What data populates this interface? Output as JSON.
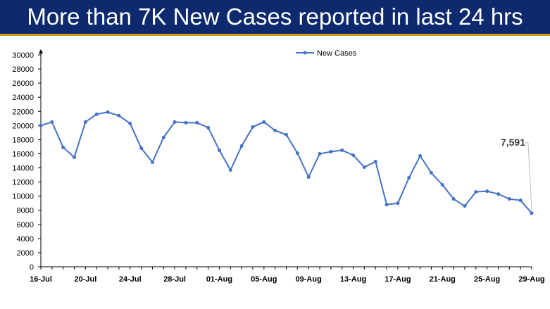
{
  "title": "More than 7K New Cases reported in last 24 hrs",
  "colors": {
    "header_bg": "#0d2a6e",
    "header_accent": "#d4a01a",
    "series": "#4472c4"
  },
  "chart_data": {
    "type": "line",
    "legend_position": "top-center",
    "grid": false,
    "ylim": [
      0,
      30000
    ],
    "yticks": [
      0,
      2000,
      4000,
      6000,
      8000,
      10000,
      12000,
      14000,
      16000,
      18000,
      20000,
      22000,
      24000,
      26000,
      28000,
      30000
    ],
    "x": [
      "16-Jul",
      "17-Jul",
      "18-Jul",
      "19-Jul",
      "20-Jul",
      "21-Jul",
      "22-Jul",
      "23-Jul",
      "24-Jul",
      "25-Jul",
      "26-Jul",
      "27-Jul",
      "28-Jul",
      "29-Jul",
      "30-Jul",
      "31-Jul",
      "01-Aug",
      "02-Aug",
      "03-Aug",
      "04-Aug",
      "05-Aug",
      "06-Aug",
      "07-Aug",
      "08-Aug",
      "09-Aug",
      "10-Aug",
      "11-Aug",
      "12-Aug",
      "13-Aug",
      "14-Aug",
      "15-Aug",
      "16-Aug",
      "17-Aug",
      "18-Aug",
      "19-Aug",
      "20-Aug",
      "21-Aug",
      "22-Aug",
      "23-Aug",
      "24-Aug",
      "25-Aug",
      "26-Aug",
      "27-Aug",
      "28-Aug",
      "29-Aug"
    ],
    "xtick_labels": [
      "16-Jul",
      "20-Jul",
      "24-Jul",
      "28-Jul",
      "01-Aug",
      "05-Aug",
      "09-Aug",
      "13-Aug",
      "17-Aug",
      "21-Aug",
      "25-Aug",
      "29-Aug"
    ],
    "series": [
      {
        "name": "New Cases",
        "values": [
          20000,
          20500,
          16900,
          15500,
          20500,
          21600,
          21900,
          21400,
          20300,
          16800,
          14800,
          18300,
          20500,
          20400,
          20400,
          19700,
          16500,
          13700,
          17100,
          19800,
          20500,
          19300,
          18700,
          16100,
          12700,
          16000,
          16300,
          16500,
          15800,
          14100,
          14900,
          8800,
          9000,
          12600,
          15700,
          13300,
          11600,
          9600,
          8600,
          10600,
          10700,
          10300,
          9600,
          9400,
          7591
        ]
      }
    ],
    "annotation": {
      "text": "7,591",
      "x": "29-Aug",
      "y": 7591
    }
  }
}
